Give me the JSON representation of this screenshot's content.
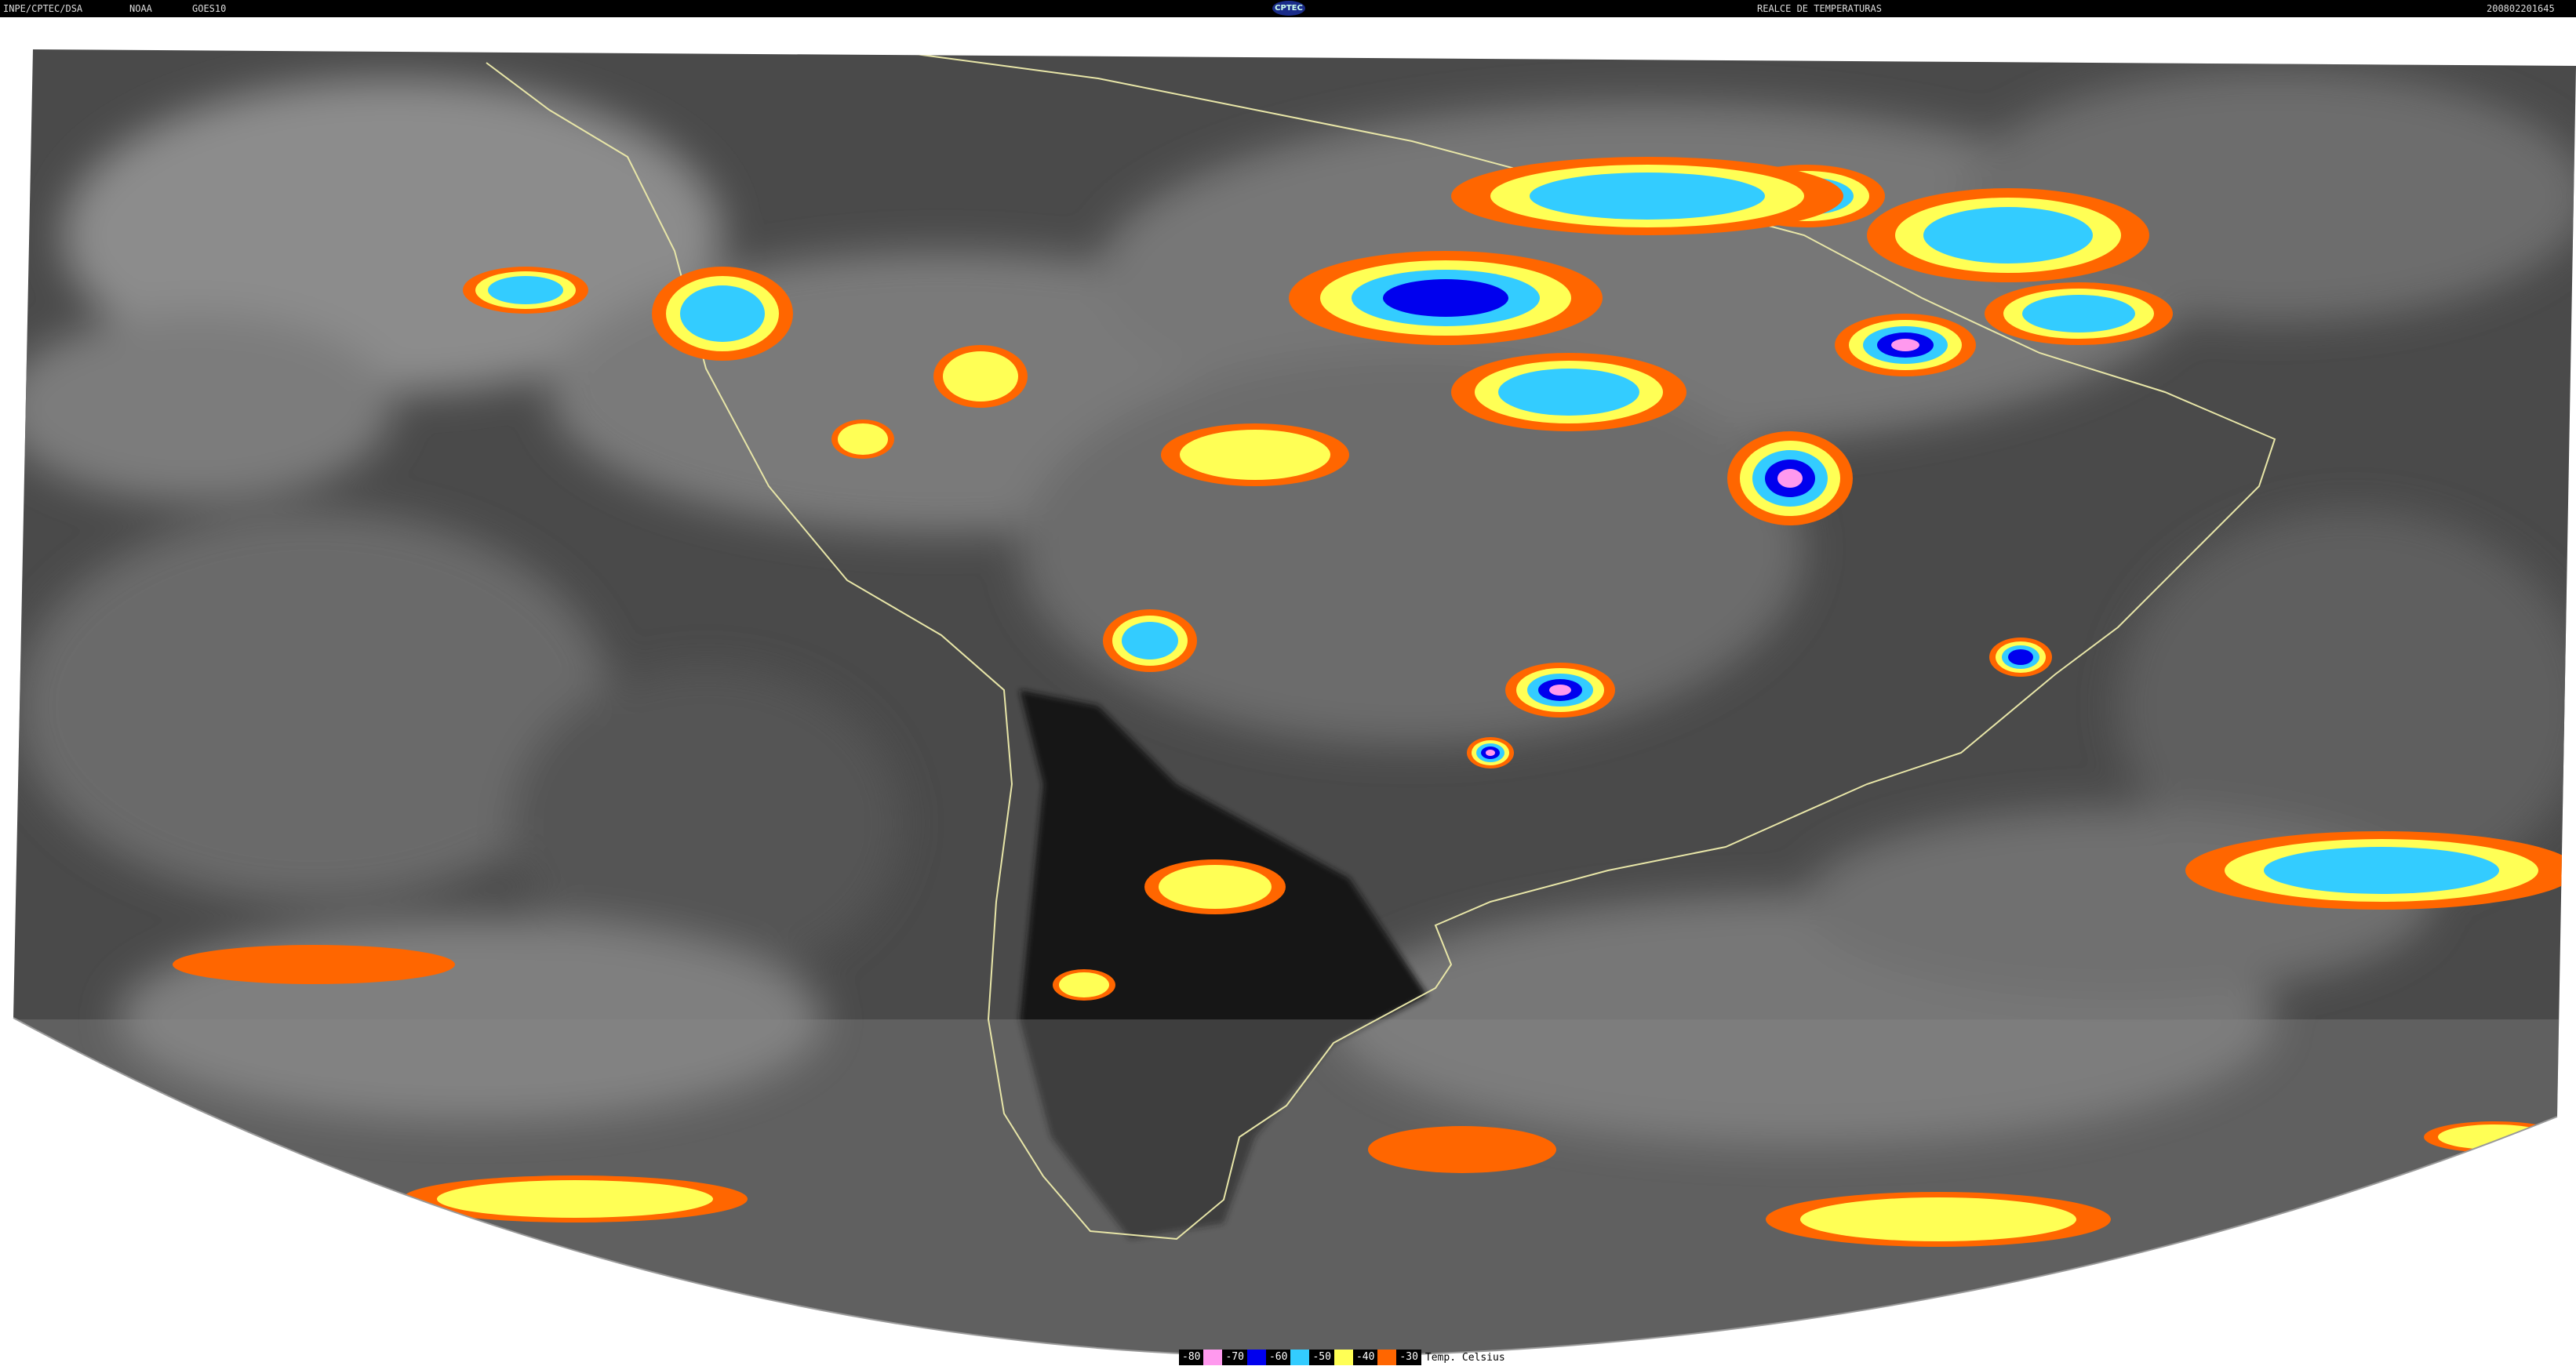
{
  "header": {
    "institution": "INPE/CPTEC/DSA",
    "agency": "NOAA",
    "satellite": "GOES10",
    "product": "REALCE DE TEMPERATURAS",
    "timestamp": "200802201645",
    "logo_text": "CPTEC"
  },
  "legend": {
    "unit_label": "Temp. Celsius",
    "entries": [
      {
        "value": "-80",
        "color": "#ff99ee"
      },
      {
        "value": "-70",
        "color": "#0000ee"
      },
      {
        "value": "-60",
        "color": "#33ccff"
      },
      {
        "value": "-50",
        "color": "#ffff55"
      },
      {
        "value": "-40",
        "color": "#ff6600"
      },
      {
        "value": "-30",
        "color": ""
      }
    ]
  },
  "colors": {
    "coastline": "#e8e6a8",
    "background_clouds": "#555555"
  }
}
